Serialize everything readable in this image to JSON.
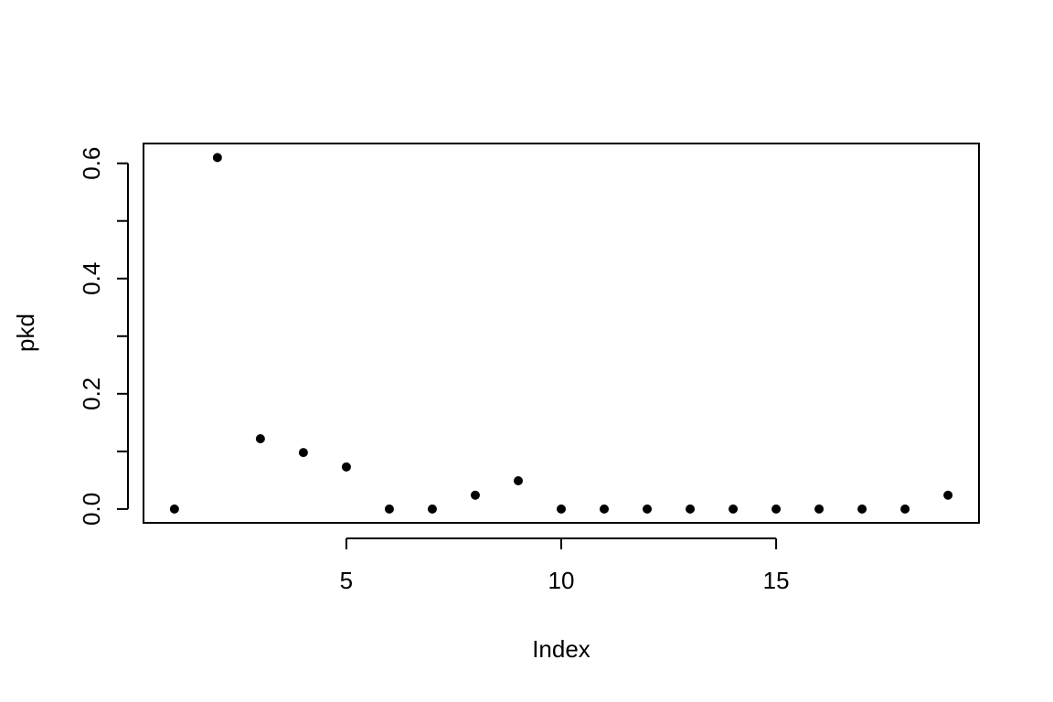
{
  "chart_data": {
    "type": "scatter",
    "title": "",
    "xlabel": "Index",
    "ylabel": "pkd",
    "xlim": [
      0.28,
      19.72
    ],
    "ylim": [
      -0.024,
      0.6344
    ],
    "x_ticks": [
      5,
      10,
      15
    ],
    "x_tick_labels": [
      "5",
      "10",
      "15"
    ],
    "y_ticks": [
      0,
      0.1,
      0.2,
      0.3,
      0.4,
      0.5,
      0.6
    ],
    "y_tick_labels": [
      "0.0",
      "",
      "0.2",
      "",
      "0.4",
      "",
      "0.6"
    ],
    "grid": false,
    "point_color": "#000000",
    "x": [
      1,
      2,
      3,
      4,
      5,
      6,
      7,
      8,
      9,
      10,
      11,
      12,
      13,
      14,
      15,
      16,
      17,
      18,
      19
    ],
    "y": [
      0,
      0.61,
      0.122,
      0.098,
      0.073,
      0,
      0,
      0.024,
      0.049,
      0,
      0,
      0,
      0,
      0,
      0,
      0,
      0,
      0,
      0.024
    ]
  }
}
